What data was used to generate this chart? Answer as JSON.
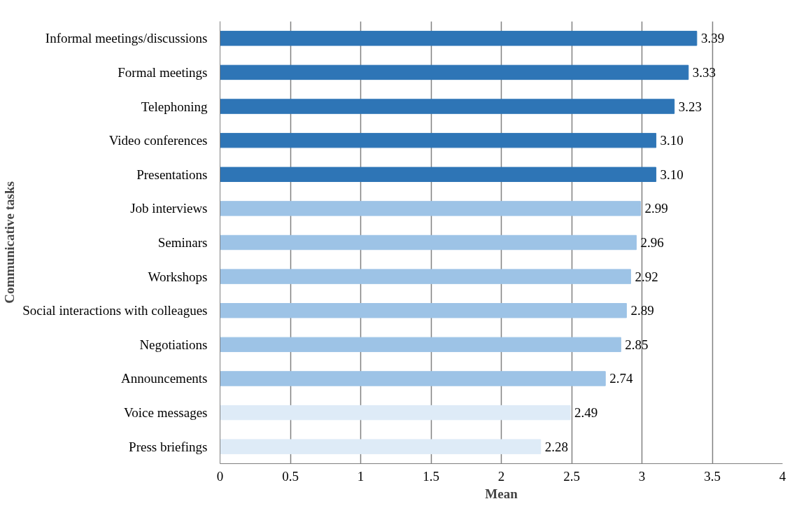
{
  "chart_data": {
    "type": "bar",
    "orientation": "horizontal",
    "xlabel": "Mean",
    "ylabel": "Communicative tasks",
    "categories": [
      "Informal meetings/discussions",
      "Formal meetings",
      "Telephoning",
      "Video conferences",
      "Presentations",
      "Job interviews",
      "Seminars",
      "Workshops",
      "Social interactions with colleagues",
      "Negotiations",
      "Announcements",
      "Voice messages",
      "Press briefings"
    ],
    "values": [
      3.39,
      3.33,
      3.23,
      3.1,
      3.1,
      2.99,
      2.96,
      2.92,
      2.89,
      2.85,
      2.74,
      2.49,
      2.28
    ],
    "colors": [
      "#2e75b6",
      "#2e75b6",
      "#2e75b6",
      "#2e75b6",
      "#2e75b6",
      "#9dc3e6",
      "#9dc3e6",
      "#9dc3e6",
      "#9dc3e6",
      "#9dc3e6",
      "#9dc3e6",
      "#deebf7",
      "#deebf7"
    ],
    "value_labels": [
      "3.39",
      "3.33",
      "3.23",
      "3.10",
      "3.10",
      "2.99",
      "2.96",
      "2.92",
      "2.89",
      "2.85",
      "2.74",
      "2.49",
      "2.28"
    ],
    "xlim": [
      0,
      4
    ],
    "xticks": [
      0,
      0.5,
      1,
      1.5,
      2,
      2.5,
      3,
      3.5,
      4
    ],
    "grid": "x"
  }
}
